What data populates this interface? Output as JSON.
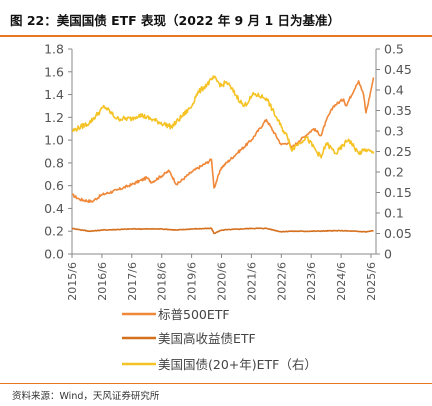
{
  "header": {
    "title": "图 22：美国国债 ETF 表现（2022 年 9 月 1 日为基准）"
  },
  "footer": {
    "source": "资料来源：Wind，天风证券研究所"
  },
  "chart_data": {
    "type": "line",
    "title": "图 22：美国国债 ETF 表现（2022 年 9 月 1 日为基准）",
    "xlabel": "",
    "ylabel": "",
    "x_ticks": [
      "2015/6",
      "2016/6",
      "2017/6",
      "2018/6",
      "2019/6",
      "2020/6",
      "2021/6",
      "2022/6",
      "2023/6",
      "2024/6",
      "2025/6"
    ],
    "y_left": {
      "range": [
        0,
        1.8
      ],
      "ticks": [
        "0.0",
        "0.2",
        "0.4",
        "0.6",
        "0.8",
        "1.0",
        "1.2",
        "1.4",
        "1.6",
        "1.8"
      ]
    },
    "y_right": {
      "range": [
        0,
        0.5
      ],
      "ticks": [
        "0",
        "0.05",
        "0.1",
        "0.15",
        "0.2",
        "0.25",
        "0.3",
        "0.35",
        "0.4",
        "0.45",
        "0.5"
      ]
    },
    "grid": false,
    "legend_position": "bottom",
    "series": [
      {
        "name": "标普500ETF",
        "axis": "left",
        "color": "#f0883a",
        "points": [
          [
            "2015/6",
            0.52
          ],
          [
            "2015/9",
            0.48
          ],
          [
            "2016/2",
            0.46
          ],
          [
            "2016/6",
            0.52
          ],
          [
            "2016/12",
            0.56
          ],
          [
            "2017/6",
            0.61
          ],
          [
            "2017/12",
            0.67
          ],
          [
            "2018/2",
            0.63
          ],
          [
            "2018/9",
            0.73
          ],
          [
            "2018/12",
            0.61
          ],
          [
            "2019/6",
            0.72
          ],
          [
            "2019/12",
            0.8
          ],
          [
            "2020/2",
            0.83
          ],
          [
            "2020/3",
            0.58
          ],
          [
            "2020/6",
            0.76
          ],
          [
            "2020/12",
            0.88
          ],
          [
            "2021/6",
            1.0
          ],
          [
            "2021/12",
            1.18
          ],
          [
            "2022/6",
            0.96
          ],
          [
            "2022/9",
            0.98
          ],
          [
            "2022/10",
            0.93
          ],
          [
            "2023/1",
            0.99
          ],
          [
            "2023/7",
            1.1
          ],
          [
            "2023/10",
            1.04
          ],
          [
            "2023/12",
            1.17
          ],
          [
            "2024/3",
            1.3
          ],
          [
            "2024/7",
            1.36
          ],
          [
            "2024/8",
            1.3
          ],
          [
            "2024/12",
            1.48
          ],
          [
            "2025/1",
            1.52
          ],
          [
            "2025/3",
            1.4
          ],
          [
            "2025/4",
            1.24
          ],
          [
            "2025/6",
            1.44
          ],
          [
            "2025/7",
            1.55
          ]
        ]
      },
      {
        "name": "美国高收益债ETF",
        "axis": "left",
        "color": "#d5701f",
        "points": [
          [
            "2015/6",
            0.225
          ],
          [
            "2016/1",
            0.2
          ],
          [
            "2016/6",
            0.21
          ],
          [
            "2017/6",
            0.22
          ],
          [
            "2018/6",
            0.22
          ],
          [
            "2018/12",
            0.21
          ],
          [
            "2019/6",
            0.22
          ],
          [
            "2020/2",
            0.225
          ],
          [
            "2020/3",
            0.18
          ],
          [
            "2020/6",
            0.21
          ],
          [
            "2021/6",
            0.225
          ],
          [
            "2021/12",
            0.225
          ],
          [
            "2022/6",
            0.195
          ],
          [
            "2022/9",
            0.2
          ],
          [
            "2023/6",
            0.2
          ],
          [
            "2024/6",
            0.205
          ],
          [
            "2025/4",
            0.195
          ],
          [
            "2025/7",
            0.205
          ]
        ]
      },
      {
        "name": "美国国债(20+年)ETF（右）",
        "axis": "right",
        "color": "#f5c325",
        "points": [
          [
            "2015/6",
            0.3
          ],
          [
            "2016/1",
            0.32
          ],
          [
            "2016/7",
            0.36
          ],
          [
            "2016/12",
            0.33
          ],
          [
            "2017/6",
            0.33
          ],
          [
            "2017/9",
            0.34
          ],
          [
            "2018/10",
            0.31
          ],
          [
            "2019/6",
            0.36
          ],
          [
            "2019/8",
            0.39
          ],
          [
            "2020/3",
            0.43
          ],
          [
            "2020/6",
            0.41
          ],
          [
            "2020/8",
            0.42
          ],
          [
            "2021/3",
            0.36
          ],
          [
            "2021/7",
            0.39
          ],
          [
            "2021/12",
            0.38
          ],
          [
            "2022/6",
            0.31
          ],
          [
            "2022/9",
            0.28
          ],
          [
            "2022/10",
            0.255
          ],
          [
            "2023/4",
            0.285
          ],
          [
            "2023/10",
            0.235
          ],
          [
            "2023/12",
            0.27
          ],
          [
            "2024/4",
            0.245
          ],
          [
            "2024/9",
            0.28
          ],
          [
            "2025/1",
            0.245
          ],
          [
            "2025/4",
            0.255
          ],
          [
            "2025/7",
            0.245
          ]
        ]
      }
    ]
  }
}
